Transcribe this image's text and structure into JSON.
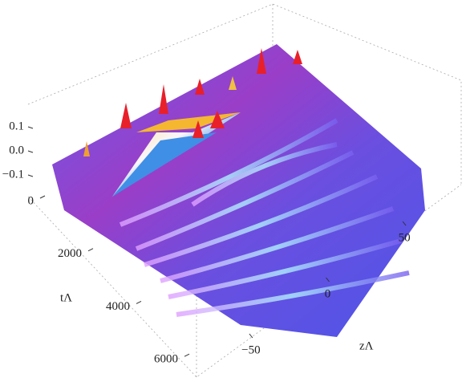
{
  "chart_data": {
    "type": "surface",
    "x_label": "zΛ",
    "y_label": "tΛ",
    "xlim": [
      -85,
      85
    ],
    "xticks": [
      {
        "value": -50,
        "label": "−50"
      },
      0,
      50
    ],
    "ylim": [
      0,
      7000
    ],
    "yticks": [
      0,
      2000,
      4000,
      6000
    ],
    "zlim": [
      -0.15,
      0.15
    ],
    "zticks": [
      0.1,
      {
        "value": 0,
        "label": "0.0"
      },
      {
        "value": -0.1,
        "label": "−0.1"
      }
    ]
  }
}
